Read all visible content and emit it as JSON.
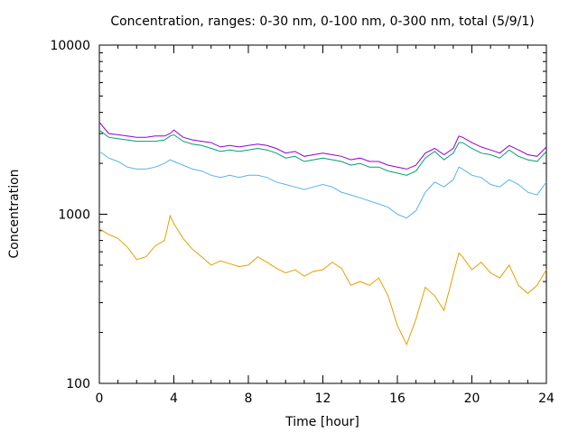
{
  "chart_data": {
    "type": "line",
    "title": "Concentration, ranges: 0-30 nm, 0-100 nm, 0-300 nm, total (5/9/1)",
    "xlabel": "Time [hour]",
    "ylabel": "Concentration",
    "xlim": [
      0,
      24
    ],
    "ylim": [
      100,
      10000
    ],
    "yscale": "log",
    "grid": false,
    "legend": "none",
    "x_ticks": [
      "0",
      "4",
      "8",
      "12",
      "16",
      "20",
      "24"
    ],
    "y_ticks": [
      "100",
      "1000",
      "10000"
    ],
    "x": [
      0,
      0.5,
      1,
      1.5,
      2,
      2.5,
      3,
      3.5,
      3.8,
      4,
      4.5,
      5,
      5.5,
      6,
      6.5,
      7,
      7.5,
      8,
      8.5,
      9,
      9.5,
      10,
      10.5,
      11,
      11.5,
      12,
      12.5,
      13,
      13.5,
      14,
      14.5,
      15,
      15.5,
      16,
      16.5,
      17,
      17.5,
      18,
      18.5,
      19,
      19.3,
      19.5,
      20,
      20.5,
      21,
      21.5,
      22,
      22.5,
      23,
      23.5,
      24
    ],
    "series": [
      {
        "color": "#e69f00",
        "values": [
          820,
          760,
          720,
          640,
          540,
          560,
          650,
          700,
          980,
          880,
          720,
          620,
          560,
          500,
          530,
          510,
          490,
          500,
          560,
          520,
          480,
          450,
          470,
          430,
          460,
          470,
          520,
          480,
          380,
          400,
          380,
          420,
          330,
          220,
          170,
          240,
          370,
          330,
          270,
          440,
          590,
          560,
          470,
          520,
          450,
          420,
          500,
          380,
          340,
          380,
          470
        ]
      },
      {
        "color": "#56b4e9",
        "values": [
          2350,
          2150,
          2050,
          1900,
          1850,
          1850,
          1900,
          2000,
          2100,
          2050,
          1950,
          1850,
          1800,
          1700,
          1650,
          1700,
          1650,
          1700,
          1700,
          1650,
          1550,
          1500,
          1450,
          1400,
          1450,
          1500,
          1450,
          1350,
          1300,
          1250,
          1200,
          1150,
          1100,
          1000,
          950,
          1050,
          1350,
          1550,
          1450,
          1600,
          1900,
          1850,
          1700,
          1650,
          1500,
          1450,
          1600,
          1500,
          1350,
          1300,
          1550
        ]
      },
      {
        "color": "#009e73",
        "values": [
          3150,
          2850,
          2800,
          2750,
          2700,
          2700,
          2700,
          2750,
          2900,
          2950,
          2700,
          2600,
          2550,
          2450,
          2350,
          2400,
          2350,
          2400,
          2450,
          2400,
          2300,
          2150,
          2200,
          2050,
          2100,
          2150,
          2100,
          2050,
          1950,
          2000,
          1900,
          1900,
          1800,
          1750,
          1700,
          1800,
          2150,
          2350,
          2100,
          2300,
          2650,
          2650,
          2450,
          2300,
          2250,
          2150,
          2400,
          2200,
          2100,
          2050,
          2350
        ]
      },
      {
        "color": "#9400d3",
        "values": [
          3500,
          3000,
          2950,
          2900,
          2850,
          2850,
          2900,
          2900,
          3000,
          3150,
          2850,
          2750,
          2700,
          2650,
          2500,
          2550,
          2500,
          2550,
          2600,
          2550,
          2450,
          2300,
          2350,
          2200,
          2250,
          2300,
          2250,
          2200,
          2100,
          2150,
          2050,
          2050,
          1950,
          1900,
          1850,
          1950,
          2300,
          2450,
          2250,
          2450,
          2900,
          2850,
          2650,
          2500,
          2400,
          2300,
          2550,
          2400,
          2250,
          2200,
          2500
        ]
      }
    ]
  }
}
